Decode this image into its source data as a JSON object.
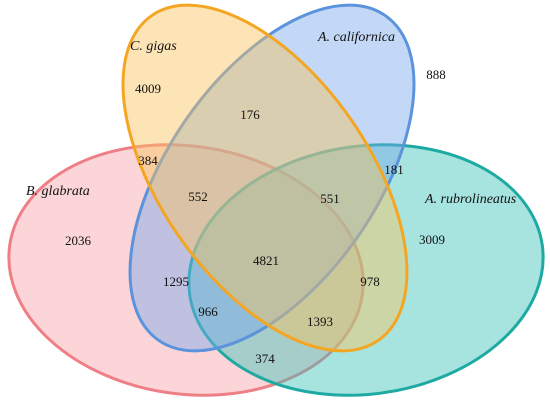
{
  "sets": [
    {
      "name": "C. gigas"
    },
    {
      "name": "A. californica"
    },
    {
      "name": "B. glabrata"
    },
    {
      "name": "A. rubrolineatus"
    }
  ],
  "regions": [
    {
      "count": 4009
    },
    {
      "count": 888
    },
    {
      "count": 176
    },
    {
      "count": 384
    },
    {
      "count": 181
    },
    {
      "count": 552
    },
    {
      "count": 551
    },
    {
      "count": 2036
    },
    {
      "count": 3009
    },
    {
      "count": 4821
    },
    {
      "count": 1295
    },
    {
      "count": 978
    },
    {
      "count": 966
    },
    {
      "count": 1393
    },
    {
      "count": 374
    }
  ]
}
